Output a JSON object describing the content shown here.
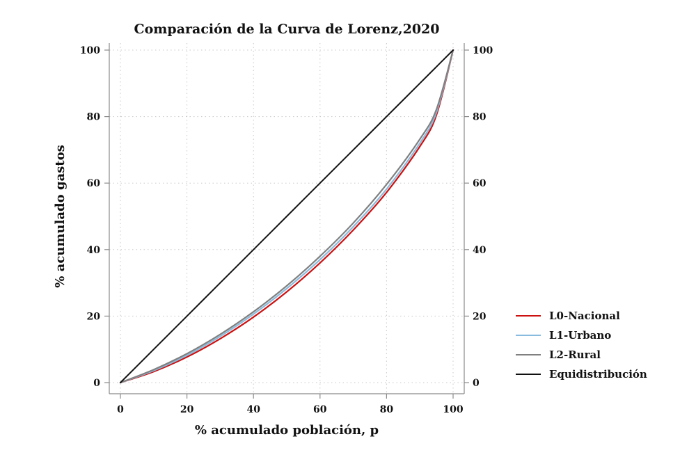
{
  "chart_data": {
    "type": "line",
    "title": "Comparación de la Curva de Lorenz,2020",
    "xlabel": "% acumulado población, p",
    "ylabel": "% acumulado gastos",
    "xlim": [
      0,
      100
    ],
    "ylim": [
      0,
      100
    ],
    "x_ticks": [
      "0",
      "20",
      "40",
      "60",
      "80",
      "100"
    ],
    "y_ticks": [
      "0",
      "20",
      "40",
      "60",
      "80",
      "100"
    ],
    "y_ticks_right": [
      "0",
      "20",
      "40",
      "60",
      "80",
      "100"
    ],
    "grid": true,
    "legend_position": "right",
    "x": [
      0,
      10,
      20,
      30,
      40,
      50,
      60,
      70,
      80,
      90,
      95,
      100
    ],
    "series": [
      {
        "name": "L0-Nacional",
        "color": "#cc1111",
        "values": [
          0,
          3.3,
          7.7,
          13.2,
          19.7,
          27.3,
          36.0,
          45.9,
          57.2,
          71.0,
          80.5,
          100
        ]
      },
      {
        "name": "L1-Urbano",
        "color": "#88bbdd",
        "values": [
          0,
          3.6,
          8.2,
          13.9,
          20.6,
          28.3,
          37.0,
          46.9,
          58.2,
          72.0,
          81.3,
          100
        ]
      },
      {
        "name": "L2-Rural",
        "color": "#808080",
        "values": [
          0,
          3.9,
          8.7,
          14.5,
          21.3,
          29.1,
          38.0,
          48.0,
          59.6,
          73.2,
          82.2,
          100
        ]
      },
      {
        "name": "Equidistribución",
        "color": "#111111",
        "values": [
          0,
          10,
          20,
          30,
          40,
          50,
          60,
          70,
          80,
          90,
          95,
          100
        ]
      }
    ]
  }
}
